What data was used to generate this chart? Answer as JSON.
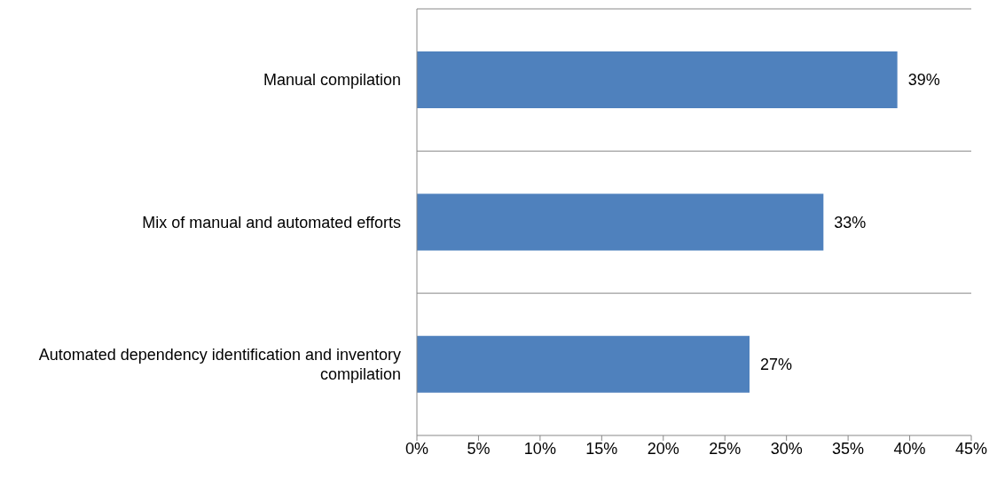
{
  "chart_data": {
    "type": "bar",
    "orientation": "horizontal",
    "categories": [
      "Manual compilation",
      "Mix of manual and automated efforts",
      "Automated dependency identification and inventory compilation"
    ],
    "values": [
      39,
      33,
      27
    ],
    "value_labels": [
      "39%",
      "33%",
      "27%"
    ],
    "color": "#4f81bd",
    "xlim": [
      0,
      45
    ],
    "xticks": [
      {
        "value": 0,
        "label": "0%"
      },
      {
        "value": 5,
        "label": "5%"
      },
      {
        "value": 10,
        "label": "10%"
      },
      {
        "value": 15,
        "label": "15%"
      },
      {
        "value": 20,
        "label": "20%"
      },
      {
        "value": 25,
        "label": "25%"
      },
      {
        "value": 30,
        "label": "30%"
      },
      {
        "value": 35,
        "label": "35%"
      },
      {
        "value": 40,
        "label": "40%"
      },
      {
        "value": 45,
        "label": "45%"
      }
    ],
    "grid": "y"
  }
}
